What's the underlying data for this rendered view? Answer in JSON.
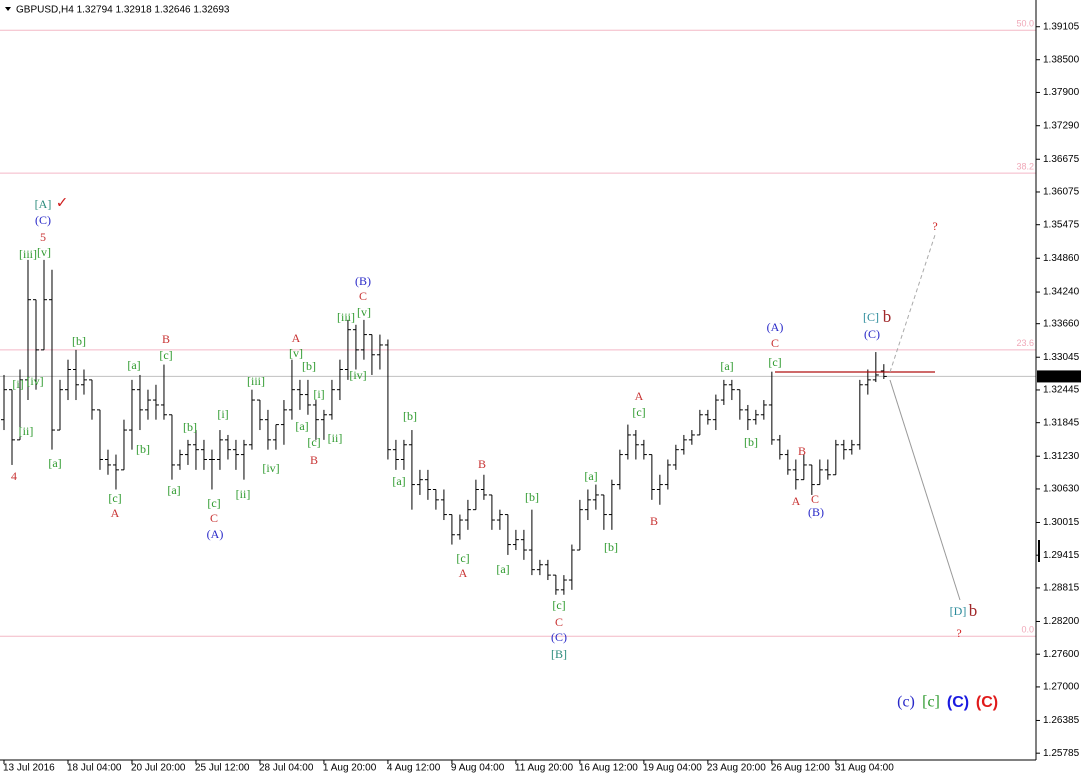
{
  "chart_data": {
    "type": "ohlc",
    "title": "GBPUSD,H4  1.32794 1.32918 1.32646 1.32693",
    "color": "#000000",
    "x": [
      0,
      1,
      2,
      3,
      4,
      5,
      6,
      7,
      8,
      9,
      10,
      11,
      12,
      13,
      14,
      15,
      16,
      17,
      18,
      19,
      20,
      21,
      22,
      23,
      24,
      25,
      26,
      27,
      28,
      29,
      30,
      31,
      32,
      33,
      34,
      35,
      36,
      37,
      38,
      39,
      40,
      41,
      42,
      43,
      44,
      45,
      46,
      47,
      48,
      49,
      50,
      51,
      52,
      53,
      54,
      55,
      56,
      57,
      58,
      59,
      60,
      61,
      62,
      63,
      64,
      65,
      66,
      67,
      68,
      69,
      70,
      71,
      72,
      73,
      74,
      75,
      76,
      77,
      78,
      79,
      80,
      81,
      82,
      83,
      84,
      85,
      86,
      87,
      88,
      89,
      90,
      91,
      92,
      93,
      94,
      95,
      96,
      97,
      98,
      99,
      100,
      101,
      102,
      103,
      104,
      105,
      106,
      107,
      108,
      109,
      110
    ],
    "open": [
      1.319,
      1.3245,
      1.3153,
      1.3263,
      1.341,
      1.3318,
      1.341,
      1.3171,
      1.3245,
      1.3282,
      1.3254,
      1.3263,
      1.3208,
      1.3117,
      1.3107,
      1.3098,
      1.3171,
      1.3245,
      1.3208,
      1.3226,
      1.3217,
      1.3199,
      1.3107,
      1.3126,
      1.3144,
      1.3135,
      1.3117,
      1.3117,
      1.3153,
      1.3135,
      1.3126,
      1.3144,
      1.3226,
      1.319,
      1.3153,
      1.3181,
      1.3208,
      1.3245,
      1.3236,
      1.3217,
      1.319,
      1.3199,
      1.3245,
      1.3282,
      1.3355,
      1.3318,
      1.3346,
      1.3309,
      1.3327,
      1.3135,
      1.3117,
      1.3144,
      1.3071,
      1.308,
      1.3062,
      1.3043,
      1.3016,
      1.2979,
      1.3006,
      1.3025,
      1.3062,
      1.3052,
      1.3006,
      1.3016,
      1.2961,
      1.297,
      1.2951,
      1.2915,
      1.2924,
      1.2905,
      1.2878,
      1.2896,
      1.2951,
      1.3025,
      1.3043,
      1.3052,
      1.3016,
      1.3071,
      1.3126,
      1.3162,
      1.3144,
      1.3126,
      1.3062,
      1.3071,
      1.3107,
      1.3135,
      1.3153,
      1.3162,
      1.3199,
      1.319,
      1.3226,
      1.3254,
      1.3245,
      1.3208,
      1.319,
      1.3199,
      1.3217,
      1.3153,
      1.3126,
      1.3098,
      1.308,
      1.3107,
      1.3071,
      1.3098,
      1.3089,
      1.3144,
      1.3135,
      1.3144,
      1.3254,
      1.3263,
      1.32794
    ],
    "high": [
      1.3272,
      1.3245,
      1.3282,
      1.3483,
      1.341,
      1.3483,
      1.3465,
      1.3263,
      1.33,
      1.3318,
      1.3282,
      1.3263,
      1.3208,
      1.3135,
      1.3126,
      1.319,
      1.3263,
      1.3272,
      1.3245,
      1.3254,
      1.3291,
      1.3199,
      1.3135,
      1.3153,
      1.3171,
      1.3153,
      1.3135,
      1.3171,
      1.3162,
      1.3153,
      1.3153,
      1.3245,
      1.3226,
      1.3208,
      1.3181,
      1.3226,
      1.33,
      1.3263,
      1.3263,
      1.3226,
      1.3208,
      1.3263,
      1.33,
      1.3373,
      1.3364,
      1.3373,
      1.3346,
      1.3346,
      1.3337,
      1.3153,
      1.3153,
      1.3171,
      1.3098,
      1.3098,
      1.3062,
      1.3062,
      1.3016,
      1.3016,
      1.3043,
      1.308,
      1.3089,
      1.3052,
      1.3025,
      1.3016,
      1.2988,
      1.2988,
      1.3025,
      1.2933,
      1.2933,
      1.2905,
      1.2905,
      1.2961,
      1.3043,
      1.3062,
      1.3071,
      1.3052,
      1.308,
      1.3135,
      1.3181,
      1.3171,
      1.3153,
      1.3126,
      1.3089,
      1.3117,
      1.3144,
      1.3162,
      1.3171,
      1.3208,
      1.3208,
      1.3236,
      1.3263,
      1.3263,
      1.3245,
      1.3217,
      1.3208,
      1.3226,
      1.3278,
      1.3162,
      1.3135,
      1.3117,
      1.3126,
      1.3107,
      1.3117,
      1.3117,
      1.3153,
      1.3153,
      1.3153,
      1.3263,
      1.3282,
      1.3314,
      1.32918
    ],
    "low": [
      1.3171,
      1.3107,
      1.3153,
      1.3226,
      1.3245,
      1.3318,
      1.3135,
      1.3171,
      1.3226,
      1.3226,
      1.3236,
      1.319,
      1.3098,
      1.3089,
      1.3062,
      1.3098,
      1.3135,
      1.3171,
      1.319,
      1.319,
      1.319,
      1.308,
      1.3098,
      1.3107,
      1.3098,
      1.3098,
      1.3062,
      1.3098,
      1.3117,
      1.3098,
      1.308,
      1.3135,
      1.3171,
      1.3135,
      1.3135,
      1.3144,
      1.319,
      1.3208,
      1.3199,
      1.3153,
      1.3153,
      1.319,
      1.3226,
      1.3263,
      1.3282,
      1.33,
      1.3272,
      1.3282,
      1.3117,
      1.3098,
      1.3098,
      1.3025,
      1.3052,
      1.3043,
      1.3025,
      1.3006,
      1.2961,
      1.297,
      1.2988,
      1.3025,
      1.3043,
      1.2988,
      1.2988,
      1.2942,
      1.2951,
      1.2933,
      1.2905,
      1.2905,
      1.2896,
      1.2869,
      1.2869,
      1.2878,
      1.2951,
      1.3006,
      1.3025,
      1.2988,
      1.2988,
      1.3062,
      1.3117,
      1.3117,
      1.3117,
      1.3043,
      1.3034,
      1.3062,
      1.3098,
      1.3126,
      1.3144,
      1.3162,
      1.3181,
      1.3171,
      1.3217,
      1.3226,
      1.319,
      1.3171,
      1.3181,
      1.319,
      1.3144,
      1.3117,
      1.3089,
      1.3062,
      1.308,
      1.3052,
      1.3071,
      1.308,
      1.3089,
      1.3117,
      1.3126,
      1.3135,
      1.3236,
      1.3259,
      1.32646
    ],
    "close": [
      1.3245,
      1.3153,
      1.3263,
      1.341,
      1.3318,
      1.341,
      1.3171,
      1.3245,
      1.3282,
      1.3254,
      1.3263,
      1.3208,
      1.3117,
      1.3107,
      1.3098,
      1.3171,
      1.3245,
      1.3208,
      1.3226,
      1.3217,
      1.3199,
      1.3107,
      1.3126,
      1.3144,
      1.3135,
      1.3117,
      1.3117,
      1.3153,
      1.3135,
      1.3126,
      1.3144,
      1.3226,
      1.319,
      1.3153,
      1.3181,
      1.3208,
      1.3245,
      1.3236,
      1.3217,
      1.319,
      1.3199,
      1.3245,
      1.3282,
      1.3355,
      1.3318,
      1.3346,
      1.3309,
      1.3327,
      1.3135,
      1.3117,
      1.3144,
      1.3071,
      1.308,
      1.3062,
      1.3043,
      1.3016,
      1.2979,
      1.3006,
      1.3025,
      1.3062,
      1.3052,
      1.3006,
      1.3016,
      1.2961,
      1.297,
      1.2951,
      1.2915,
      1.2924,
      1.2905,
      1.2878,
      1.2896,
      1.2951,
      1.3025,
      1.3043,
      1.3052,
      1.3016,
      1.3071,
      1.3126,
      1.3162,
      1.3144,
      1.3126,
      1.3062,
      1.3071,
      1.3107,
      1.3135,
      1.3153,
      1.3162,
      1.3199,
      1.319,
      1.3226,
      1.3254,
      1.3245,
      1.3208,
      1.319,
      1.3199,
      1.3217,
      1.3153,
      1.3126,
      1.3098,
      1.308,
      1.3107,
      1.3071,
      1.3098,
      1.3089,
      1.3144,
      1.3135,
      1.3144,
      1.3254,
      1.3263,
      1.3272,
      1.32693
    ],
    "xlim": [
      -0.5,
      128.9
    ],
    "xticks": [
      {
        "value": 0,
        "label": "13 Jul 2016"
      },
      {
        "value": 8,
        "label": "18 Jul 04:00"
      },
      {
        "value": 16,
        "label": "20 Jul 20:00"
      },
      {
        "value": 24,
        "label": "25 Jul 12:00"
      },
      {
        "value": 32,
        "label": "28 Jul 04:00"
      },
      {
        "value": 40,
        "label": "1 Aug 20:00"
      },
      {
        "value": 48,
        "label": "4 Aug 12:00"
      },
      {
        "value": 56,
        "label": "9 Aug 04:00"
      },
      {
        "value": 64,
        "label": "11 Aug 20:00"
      },
      {
        "value": 72,
        "label": "16 Aug 12:00"
      },
      {
        "value": 80,
        "label": "19 Aug 04:00"
      },
      {
        "value": 88,
        "label": "23 Aug 20:00"
      },
      {
        "value": 96,
        "label": "26 Aug 12:00"
      },
      {
        "value": 104,
        "label": "31 Aug 04:00"
      }
    ],
    "ylim": [
      1.2566,
      1.3954
    ],
    "yticks": [
      {
        "value": 1.39105,
        "label": "1.39105"
      },
      {
        "value": 1.385,
        "label": "1.38500"
      },
      {
        "value": 1.379,
        "label": "1.37900"
      },
      {
        "value": 1.3729,
        "label": "1.37290"
      },
      {
        "value": 1.36675,
        "label": "1.36675"
      },
      {
        "value": 1.36075,
        "label": "1.36075"
      },
      {
        "value": 1.35475,
        "label": "1.35475"
      },
      {
        "value": 1.3486,
        "label": "1.34860"
      },
      {
        "value": 1.3424,
        "label": "1.34240"
      },
      {
        "value": 1.3366,
        "label": "1.33660"
      },
      {
        "value": 1.33045,
        "label": "1.33045"
      },
      {
        "value": 1.32445,
        "label": "1.32445"
      },
      {
        "value": 1.31845,
        "label": "1.31845"
      },
      {
        "value": 1.3123,
        "label": "1.31230"
      },
      {
        "value": 1.3063,
        "label": "1.30630"
      },
      {
        "value": 1.30015,
        "label": "1.30015"
      },
      {
        "value": 1.29415,
        "label": "1.29415"
      },
      {
        "value": 1.28815,
        "label": "1.28815"
      },
      {
        "value": 1.282,
        "label": "1.28200"
      },
      {
        "value": 1.276,
        "label": "1.27600"
      },
      {
        "value": 1.27,
        "label": "1.27000"
      },
      {
        "value": 1.26385,
        "label": "1.26385"
      },
      {
        "value": 1.25785,
        "label": "1.25785"
      }
    ],
    "level_color": "#f4b8c6",
    "levels": [
      {
        "value": 1.3904,
        "label": "50.0"
      },
      {
        "value": 1.3642,
        "label": "38.2"
      },
      {
        "value": 1.3318,
        "label": "23.6"
      },
      {
        "value": 1.2793,
        "label": "0.0"
      }
    ],
    "last_price": {
      "value": 1.32693,
      "label": "1.32693"
    },
    "annotations": [
      {
        "text": "[A]",
        "color": "#2a8a7a"
      },
      {
        "text": "✓",
        "color": "#d02020"
      },
      {
        "text": "(C)",
        "color": "#2828c8"
      },
      {
        "text": "5",
        "color": "#c83232"
      },
      {
        "text": "[iii]",
        "color": "#2e9a2e"
      },
      {
        "text": "[v]",
        "color": "#2e9a2e"
      },
      {
        "text": "[i]",
        "color": "#2e9a2e"
      },
      {
        "text": "[iv]",
        "color": "#2e9a2e"
      },
      {
        "text": "[ii]",
        "color": "#2e9a2e"
      },
      {
        "text": "4",
        "color": "#c83232"
      },
      {
        "text": "[a]",
        "color": "#2e9a2e"
      },
      {
        "text": "[b]",
        "color": "#2e9a2e"
      },
      {
        "text": "[a]",
        "color": "#2e9a2e"
      },
      {
        "text": "[c]",
        "color": "#2e9a2e"
      },
      {
        "text": "A",
        "color": "#c83232"
      },
      {
        "text": "[b]",
        "color": "#2e9a2e"
      },
      {
        "text": "B",
        "color": "#c83232"
      },
      {
        "text": "[c]",
        "color": "#2e9a2e"
      },
      {
        "text": "[a]",
        "color": "#2e9a2e"
      },
      {
        "text": "[b]",
        "color": "#2e9a2e"
      },
      {
        "text": "[c]",
        "color": "#2e9a2e"
      },
      {
        "text": "C",
        "color": "#c83232"
      },
      {
        "text": "(A)",
        "color": "#2828c8"
      },
      {
        "text": "[i]",
        "color": "#2e9a2e"
      },
      {
        "text": "[ii]",
        "color": "#2e9a2e"
      },
      {
        "text": "[iii]",
        "color": "#2e9a2e"
      },
      {
        "text": "[iv]",
        "color": "#2e9a2e"
      },
      {
        "text": "A",
        "color": "#c83232"
      },
      {
        "text": "[v]",
        "color": "#2e9a2e"
      },
      {
        "text": "[b]",
        "color": "#2e9a2e"
      },
      {
        "text": "[i]",
        "color": "#2e9a2e"
      },
      {
        "text": "[a]",
        "color": "#2e9a2e"
      },
      {
        "text": "[c]",
        "color": "#2e9a2e"
      },
      {
        "text": "B",
        "color": "#c83232"
      },
      {
        "text": "[ii]",
        "color": "#2e9a2e"
      },
      {
        "text": "(B)",
        "color": "#2828c8"
      },
      {
        "text": "C",
        "color": "#c83232"
      },
      {
        "text": "[iii]",
        "color": "#2e9a2e"
      },
      {
        "text": "[v]",
        "color": "#2e9a2e"
      },
      {
        "text": "[iv]",
        "color": "#2e9a2e"
      },
      {
        "text": "[b]",
        "color": "#2e9a2e"
      },
      {
        "text": "[a]",
        "color": "#2e9a2e"
      },
      {
        "text": "B",
        "color": "#c83232"
      },
      {
        "text": "[c]",
        "color": "#2e9a2e"
      },
      {
        "text": "A",
        "color": "#c83232"
      },
      {
        "text": "[a]",
        "color": "#2e9a2e"
      },
      {
        "text": "[b]",
        "color": "#2e9a2e"
      },
      {
        "text": "[c]",
        "color": "#2e9a2e"
      },
      {
        "text": "C",
        "color": "#c83232"
      },
      {
        "text": "(C)",
        "color": "#2828c8"
      },
      {
        "text": "[B]",
        "color": "#2a8a7a"
      },
      {
        "text": "[a]",
        "color": "#2e9a2e"
      },
      {
        "text": "[b]",
        "color": "#2e9a2e"
      },
      {
        "text": "A",
        "color": "#c83232"
      },
      {
        "text": "[c]",
        "color": "#2e9a2e"
      },
      {
        "text": "B",
        "color": "#c83232"
      },
      {
        "text": "[a]",
        "color": "#2e9a2e"
      },
      {
        "text": "[b]",
        "color": "#2e9a2e"
      },
      {
        "text": "(A)",
        "color": "#2828c8"
      },
      {
        "text": "C",
        "color": "#c83232"
      },
      {
        "text": "[c]",
        "color": "#2e9a2e"
      },
      {
        "text": "B",
        "color": "#c83232"
      },
      {
        "text": "A",
        "color": "#c83232"
      },
      {
        "text": "C",
        "color": "#c83232"
      },
      {
        "text": "(B)",
        "color": "#2828c8"
      },
      {
        "text": "[C]",
        "color": "#2a8a9a"
      },
      {
        "text": "b",
        "color": "#a0282a"
      },
      {
        "text": "(C)",
        "color": "#2828c8"
      },
      {
        "text": "?",
        "color": "#d02020"
      },
      {
        "text": "[D]",
        "color": "#2a8a9a"
      },
      {
        "text": "b",
        "color": "#a0282a"
      },
      {
        "text": "?",
        "color": "#d02020"
      },
      {
        "text": "(c)",
        "color": "#2828c8"
      },
      {
        "text": "[c]",
        "color": "#2e9a2e"
      },
      {
        "text": "(C)",
        "color": "#1a1ae0"
      },
      {
        "text": "(C)",
        "color": "#e01a1a"
      }
    ]
  }
}
